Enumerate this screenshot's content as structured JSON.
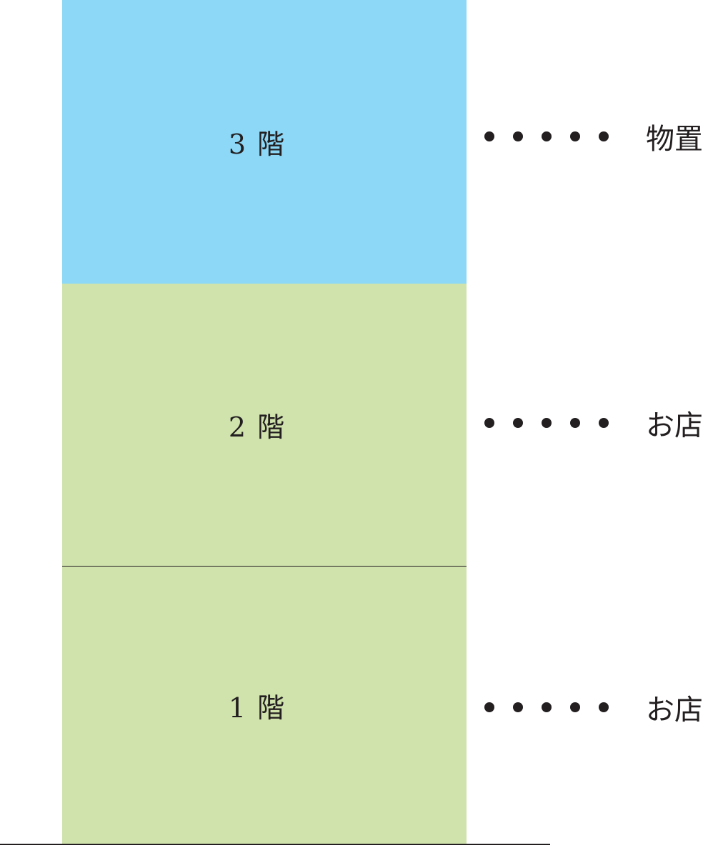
{
  "floors": [
    {
      "label": "3 階",
      "use": "物置",
      "color": "#8dd8f6"
    },
    {
      "label": "2 階",
      "use": "お店",
      "color": "#d0e3ad"
    },
    {
      "label": "1 階",
      "use": "お店",
      "color": "#d0e3ad"
    }
  ],
  "colors": {
    "line": "#231f20",
    "storage_floor": "#8dd8f6",
    "shop_floor": "#d0e3ad"
  }
}
